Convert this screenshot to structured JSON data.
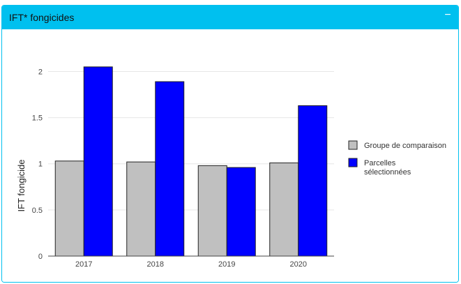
{
  "panel": {
    "title": "IFT* fongicides",
    "collapse_symbol": "−"
  },
  "colors": {
    "header": "#00c0ef",
    "series_comparison": "#c0c0c0",
    "series_selected": "#0000ff"
  },
  "chart_data": {
    "type": "bar",
    "categories": [
      "2017",
      "2018",
      "2019",
      "2020"
    ],
    "series": [
      {
        "name": "Groupe de comparaison",
        "values": [
          1.03,
          1.02,
          0.98,
          1.01
        ],
        "color": "#c0c0c0"
      },
      {
        "name": "Parcelles sélectionnées",
        "values": [
          2.05,
          1.89,
          0.96,
          1.63
        ],
        "color": "#0000ff"
      }
    ],
    "ylabel": "IFT fongicide",
    "ylim": [
      0,
      2.2
    ],
    "yticks": [
      0,
      0.5,
      1,
      1.5,
      2
    ],
    "ytick_labels": [
      "0",
      "0.5",
      "1",
      "1.5",
      "2"
    ],
    "grid": true,
    "legend_position": "right"
  }
}
